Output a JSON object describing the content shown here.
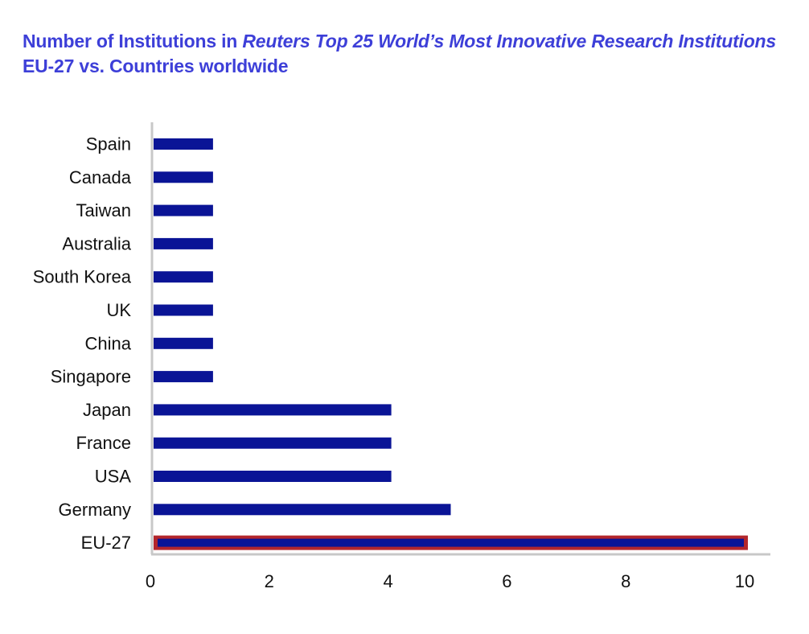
{
  "title": {
    "part1": "Number of Institutions in ",
    "part2_italic": "Reuters Top 25 World’s Most Innovative Research Institutions",
    "part3": " EU-27 vs. Countries worldwide"
  },
  "colors": {
    "title": "#3d3fd8",
    "bar": "#0a1496",
    "highlight_border": "#b3262c",
    "axis": "#c8c8c8",
    "text": "#111111"
  },
  "chart_data": {
    "type": "bar",
    "orientation": "horizontal",
    "categories": [
      "Spain",
      "Canada",
      "Taiwan",
      "Australia",
      "South Korea",
      "UK",
      "China",
      "Singapore",
      "Japan",
      "France",
      "USA",
      "Germany",
      "EU-27"
    ],
    "values": [
      1,
      1,
      1,
      1,
      1,
      1,
      1,
      1,
      4,
      4,
      4,
      5,
      10
    ],
    "highlighted_category": "EU-27",
    "xlim": [
      0,
      10
    ],
    "xticks": [
      0,
      2,
      4,
      6,
      8,
      10
    ],
    "xlabel": "",
    "ylabel": "",
    "grid": false,
    "legend": "none"
  }
}
